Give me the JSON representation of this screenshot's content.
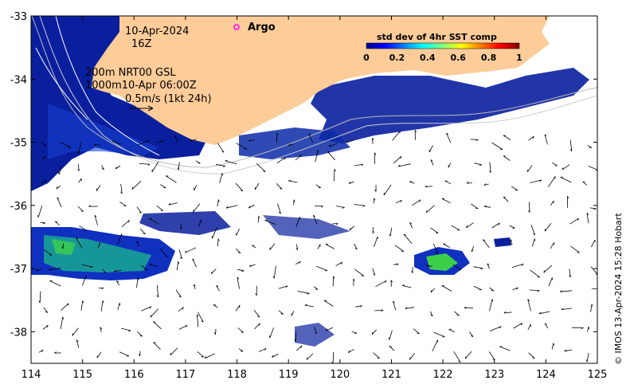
{
  "map": {
    "lon_range": [
      114,
      125
    ],
    "lat_range": [
      -38.5,
      -33
    ],
    "x_ticks": [
      114,
      115,
      116,
      117,
      118,
      119,
      120,
      121,
      122,
      123,
      124,
      125
    ],
    "y_ticks": [
      -33,
      -34,
      -35,
      -36,
      -37,
      -38
    ],
    "x_tick_labels": [
      "114",
      "115",
      "116",
      "117",
      "118",
      "119",
      "120",
      "121",
      "122",
      "123",
      "124",
      "125"
    ],
    "y_tick_labels": [
      "-33",
      "-34",
      "-35",
      "-36",
      "-37",
      "-38"
    ],
    "land_color": "#fdcc99",
    "ocean_color": "#ffffff"
  },
  "annotations": {
    "date": "10-Apr-2024",
    "hour": "16Z",
    "line1": "200m  NRT00 GSL",
    "line2": "1000m10-Apr 06:00Z",
    "scale": "0.5m/s (1kt 24h)",
    "argo_label": "Argo",
    "argo_color": "#ff00ff"
  },
  "colorbar": {
    "title": "std dev of 4hr SST comp",
    "range": [
      0,
      1
    ],
    "tick_labels": [
      "0",
      "0.2",
      "0.4",
      "0.6",
      "0.8",
      "1"
    ],
    "colormap": "jet"
  },
  "credit": "© IMOS 13-Apr-2024 15:28 Hobart",
  "data_patches": [
    {
      "name": "southwest-block",
      "lon": [
        114,
        116.2
      ],
      "lat": [
        -37.3,
        -36.4
      ],
      "level": 0.25
    },
    {
      "name": "southeast-blob",
      "lon": [
        121.7,
        122.3
      ],
      "lat": [
        -37.05,
        -36.75
      ],
      "level": 0.35
    },
    {
      "name": "northwest-shelf",
      "lon": [
        114,
        115.2
      ],
      "lat": [
        -35.8,
        -33
      ],
      "level": 0.05
    },
    {
      "name": "south-coast-band",
      "lon": [
        120.5,
        124
      ],
      "lat": [
        -35.1,
        -34.2
      ],
      "level": 0.08
    }
  ]
}
